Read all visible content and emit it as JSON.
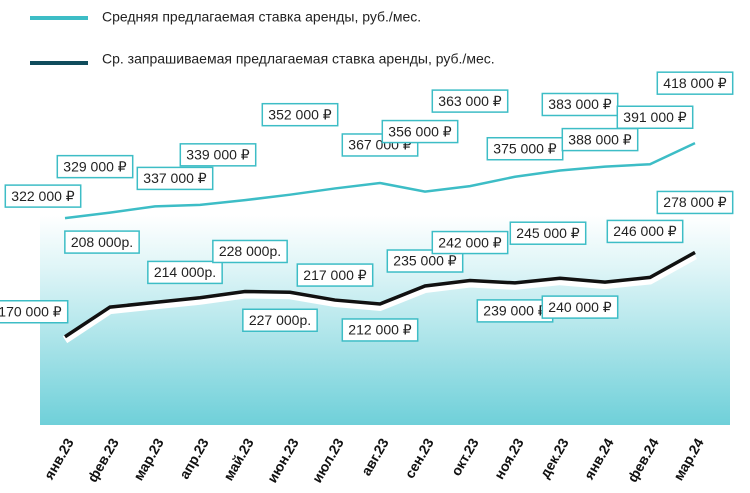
{
  "chart_data": {
    "type": "line",
    "categories": [
      "янв.23",
      "фев.23",
      "мар.23",
      "апр.23",
      "май.23",
      "июн.23",
      "июл.23",
      "авг.23",
      "сен.23",
      "окт.23",
      "ноя.23",
      "дек.23",
      "янв.24",
      "фев.24",
      "мар.24"
    ],
    "series": [
      {
        "name": "Средняя предлагаемая ставка аренды, руб./мес.",
        "color": "#3dbdc6",
        "values": [
          322000,
          329000,
          337000,
          339000,
          345000,
          352000,
          360000,
          367000,
          356000,
          363000,
          375000,
          383000,
          388000,
          391000,
          418000
        ],
        "value_labels": [
          "322 000 ₽",
          "329 000 ₽",
          "337 000 ₽",
          "339 000 ₽",
          null,
          "352 000 ₽",
          null,
          "367 000 ₽",
          "356 000 ₽",
          "363 000 ₽",
          "375 000 ₽",
          "383 000 ₽",
          "388 000 ₽",
          "391 000 ₽",
          "418 000 ₽"
        ]
      },
      {
        "name": "Ср. запрашиваемая предлагаемая ставка аренды, руб./мес.",
        "color": "#111111",
        "values": [
          170000,
          208000,
          214000,
          220000,
          228000,
          227000,
          217000,
          212000,
          235000,
          242000,
          239000,
          245000,
          240000,
          246000,
          278000
        ],
        "value_labels": [
          "170 000 ₽",
          "208 000р.",
          "214 000р.",
          null,
          "228 000р.",
          "227 000р.",
          "217 000 ₽",
          "212 000 ₽",
          "235 000 ₽",
          "242 000 ₽",
          "239 000 ₽",
          "245 000 ₽",
          "240 000 ₽",
          "246 000 ₽",
          "278 000 ₽"
        ]
      }
    ],
    "ylim": [
      80000,
      440000
    ]
  }
}
